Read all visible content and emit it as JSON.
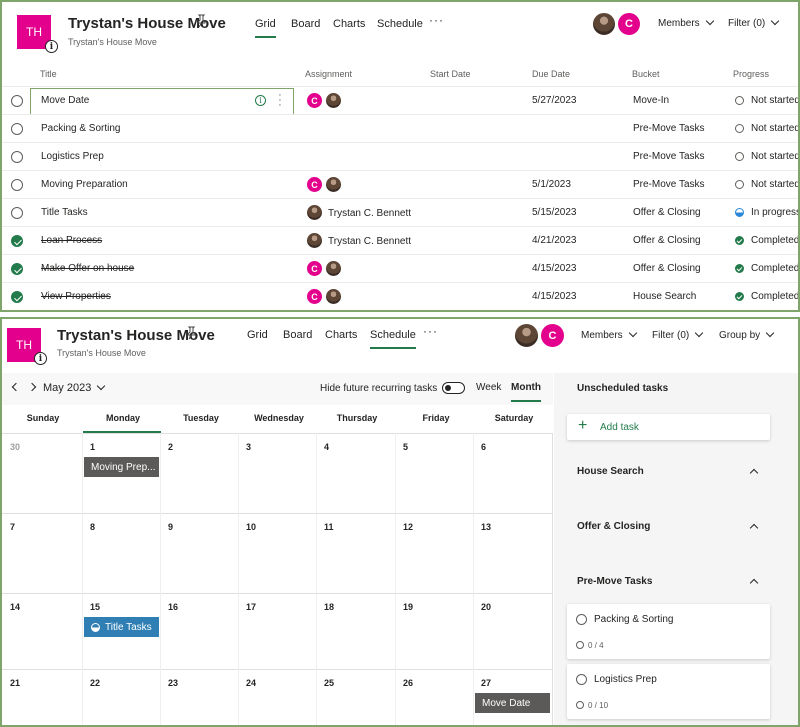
{
  "colors": {
    "accent": "#237b4b",
    "brand_pink": "#e3008c",
    "frame_green": "#7fa56a",
    "in_progress_blue": "#2b88d8",
    "chip_gray": "#5b5a58",
    "chip_blue": "#2f7fb5"
  },
  "plan": {
    "avatar_initials": "TH",
    "title": "Trystan's House Move",
    "subtitle": "Trystan's House Move",
    "info_glyph": "i"
  },
  "grid_view": {
    "tabs": [
      "Grid",
      "Board",
      "Charts",
      "Schedule"
    ],
    "active_tab": "Grid",
    "more_label": "···",
    "member_initial": "C",
    "members_label": "Members",
    "filter_label": "Filter (0)",
    "columns": {
      "title": "Title",
      "assignment": "Assignment",
      "start_date": "Start Date",
      "due_date": "Due Date",
      "bucket": "Bucket",
      "progress": "Progress"
    },
    "rows": [
      {
        "title": "Move Date",
        "completed": false,
        "assignee_initial": "C",
        "assignee_name": "",
        "start": "",
        "due": "5/27/2023",
        "bucket": "Move-In",
        "progress": "Not started",
        "progress_state": "not-started"
      },
      {
        "title": "Packing & Sorting",
        "completed": false,
        "assignee_initial": "",
        "assignee_name": "",
        "start": "",
        "due": "",
        "bucket": "Pre-Move Tasks",
        "progress": "Not started",
        "progress_state": "not-started"
      },
      {
        "title": "Logistics Prep",
        "completed": false,
        "assignee_initial": "",
        "assignee_name": "",
        "start": "",
        "due": "",
        "bucket": "Pre-Move Tasks",
        "progress": "Not started",
        "progress_state": "not-started"
      },
      {
        "title": "Moving Preparation",
        "completed": false,
        "assignee_initial": "C",
        "assignee_name": "",
        "start": "",
        "due": "5/1/2023",
        "bucket": "Pre-Move Tasks",
        "progress": "Not started",
        "progress_state": "not-started"
      },
      {
        "title": "Title Tasks",
        "completed": false,
        "assignee_initial": "",
        "assignee_name": "Trystan C. Bennett",
        "start": "",
        "due": "5/15/2023",
        "bucket": "Offer & Closing",
        "progress": "In progress",
        "progress_state": "in-progress"
      },
      {
        "title": "Loan Process",
        "completed": true,
        "assignee_initial": "",
        "assignee_name": "Trystan C. Bennett",
        "start": "",
        "due": "4/21/2023",
        "bucket": "Offer & Closing",
        "progress": "Completed",
        "progress_state": "completed"
      },
      {
        "title": "Make Offer on house",
        "completed": true,
        "assignee_initial": "C",
        "assignee_name": "",
        "start": "",
        "due": "4/15/2023",
        "bucket": "Offer & Closing",
        "progress": "Completed",
        "progress_state": "completed"
      },
      {
        "title": "View Properties",
        "completed": true,
        "assignee_initial": "C",
        "assignee_name": "",
        "start": "",
        "due": "4/15/2023",
        "bucket": "House Search",
        "progress": "Completed",
        "progress_state": "completed"
      }
    ]
  },
  "schedule_view": {
    "tabs": [
      "Grid",
      "Board",
      "Charts",
      "Schedule"
    ],
    "active_tab": "Schedule",
    "more_label": "···",
    "member_initial": "C",
    "members_label": "Members",
    "filter_label": "Filter (0)",
    "group_by_label": "Group by",
    "month_label": "May 2023",
    "hide_recurring_label": "Hide future recurring tasks",
    "hide_recurring_on": true,
    "week_label": "Week",
    "month_button_label": "Month",
    "active_range": "Month",
    "day_names": [
      "Sunday",
      "Monday",
      "Tuesday",
      "Wednesday",
      "Thursday",
      "Friday",
      "Saturday"
    ],
    "selected_day_name": "Monday",
    "weeks": [
      [
        "30",
        "1",
        "2",
        "3",
        "4",
        "5",
        "6"
      ],
      [
        "7",
        "8",
        "9",
        "10",
        "11",
        "12",
        "13"
      ],
      [
        "14",
        "15",
        "16",
        "17",
        "18",
        "19",
        "20"
      ],
      [
        "21",
        "22",
        "23",
        "24",
        "25",
        "26",
        "27"
      ]
    ],
    "outside_month_days": [
      "30"
    ],
    "events": [
      {
        "label": "Moving Prep...",
        "day": "1",
        "style": "gray",
        "icon": ""
      },
      {
        "label": "Title Tasks",
        "day": "15",
        "style": "blue",
        "icon": "in-progress-icon"
      },
      {
        "label": "Move Date",
        "day": "27",
        "style": "gray",
        "icon": ""
      }
    ],
    "unscheduled": {
      "heading": "Unscheduled tasks",
      "add_task_label": "Add task",
      "add_glyph": "+",
      "sections": [
        {
          "name": "House Search",
          "expanded": true,
          "tasks": []
        },
        {
          "name": "Offer & Closing",
          "expanded": true,
          "tasks": []
        },
        {
          "name": "Pre-Move Tasks",
          "expanded": true,
          "tasks": [
            {
              "title": "Packing & Sorting",
              "checklist": "0 / 4"
            },
            {
              "title": "Logistics Prep",
              "checklist": "0 / 10"
            }
          ]
        }
      ]
    }
  }
}
